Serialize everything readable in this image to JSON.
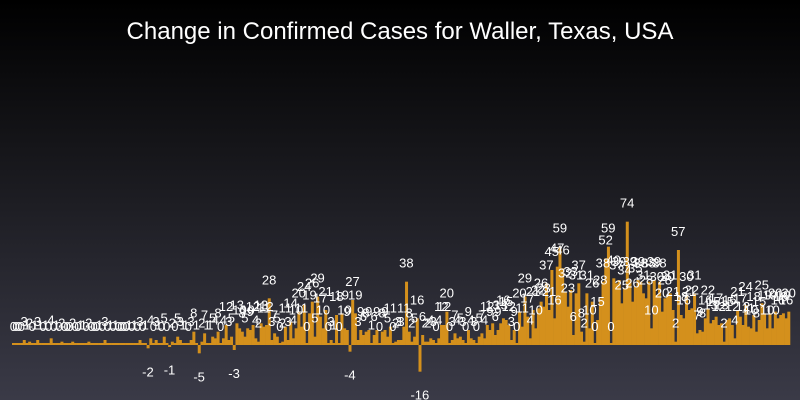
{
  "chart_data": {
    "type": "bar",
    "title": "Change in Confirmed Cases for Waller, Texas, USA",
    "xlabel": "",
    "ylabel": "",
    "ylim": [
      -16,
      153
    ],
    "grid": false,
    "legend": "none",
    "colors": {
      "bar": "#d4901c",
      "text": "#ffffff"
    },
    "values": [
      0,
      0,
      0,
      0,
      3,
      1,
      2,
      0,
      1,
      3,
      1,
      0,
      1,
      0,
      4,
      0,
      1,
      0,
      2,
      0,
      0,
      0,
      2,
      0,
      0,
      1,
      1,
      0,
      2,
      0,
      0,
      0,
      1,
      0,
      3,
      0,
      1,
      0,
      1,
      0,
      0,
      0,
      0,
      1,
      0,
      1,
      0,
      3,
      0,
      1,
      -2,
      4,
      0,
      3,
      1,
      0,
      5,
      0,
      -1,
      2,
      0,
      5,
      3,
      1,
      1,
      0,
      3,
      8,
      1,
      -5,
      2,
      7,
      1,
      1,
      5,
      4,
      8,
      0,
      4,
      12,
      3,
      5,
      -3,
      13,
      10,
      8,
      5,
      10,
      9,
      12,
      4,
      2,
      13,
      11,
      12,
      28,
      3,
      7,
      5,
      0,
      2,
      11,
      3,
      14,
      4,
      10,
      20,
      11,
      24,
      0,
      19,
      26,
      5,
      29,
      17,
      10,
      21,
      0,
      3,
      1,
      18,
      0,
      19,
      10,
      9,
      -4,
      27,
      19,
      3,
      9,
      6,
      8,
      9,
      1,
      6,
      9,
      0,
      8,
      9,
      5,
      11,
      0,
      2,
      3,
      3,
      11,
      38,
      8,
      2,
      5,
      16,
      -16,
      6,
      2,
      2,
      4,
      3,
      0,
      4,
      12,
      12,
      20,
      0,
      3,
      7,
      4,
      5,
      3,
      0,
      9,
      4,
      3,
      0,
      5,
      7,
      4,
      12,
      9,
      13,
      6,
      9,
      13,
      16,
      15,
      12,
      3,
      9,
      0,
      20,
      11,
      29,
      17,
      4,
      21,
      10,
      22,
      26,
      23,
      37,
      21,
      45,
      16,
      47,
      59,
      46,
      32,
      23,
      33,
      6,
      31,
      37,
      8,
      2,
      31,
      10,
      26,
      0,
      15,
      28,
      38,
      52,
      59,
      0,
      40,
      37,
      39,
      25,
      34,
      74,
      39,
      26,
      35,
      39,
      38,
      31,
      28,
      38,
      10,
      39,
      30,
      38,
      20,
      28,
      30,
      31,
      21,
      2,
      57,
      18,
      16,
      30,
      21,
      22,
      31,
      7,
      9,
      8,
      16,
      22,
      13,
      15,
      17,
      12,
      13,
      2,
      15,
      16,
      12,
      4,
      21,
      17,
      12,
      24,
      11,
      10,
      18,
      8,
      15,
      25,
      19,
      10,
      19,
      10,
      20,
      16,
      18,
      19,
      16,
      20
    ]
  }
}
